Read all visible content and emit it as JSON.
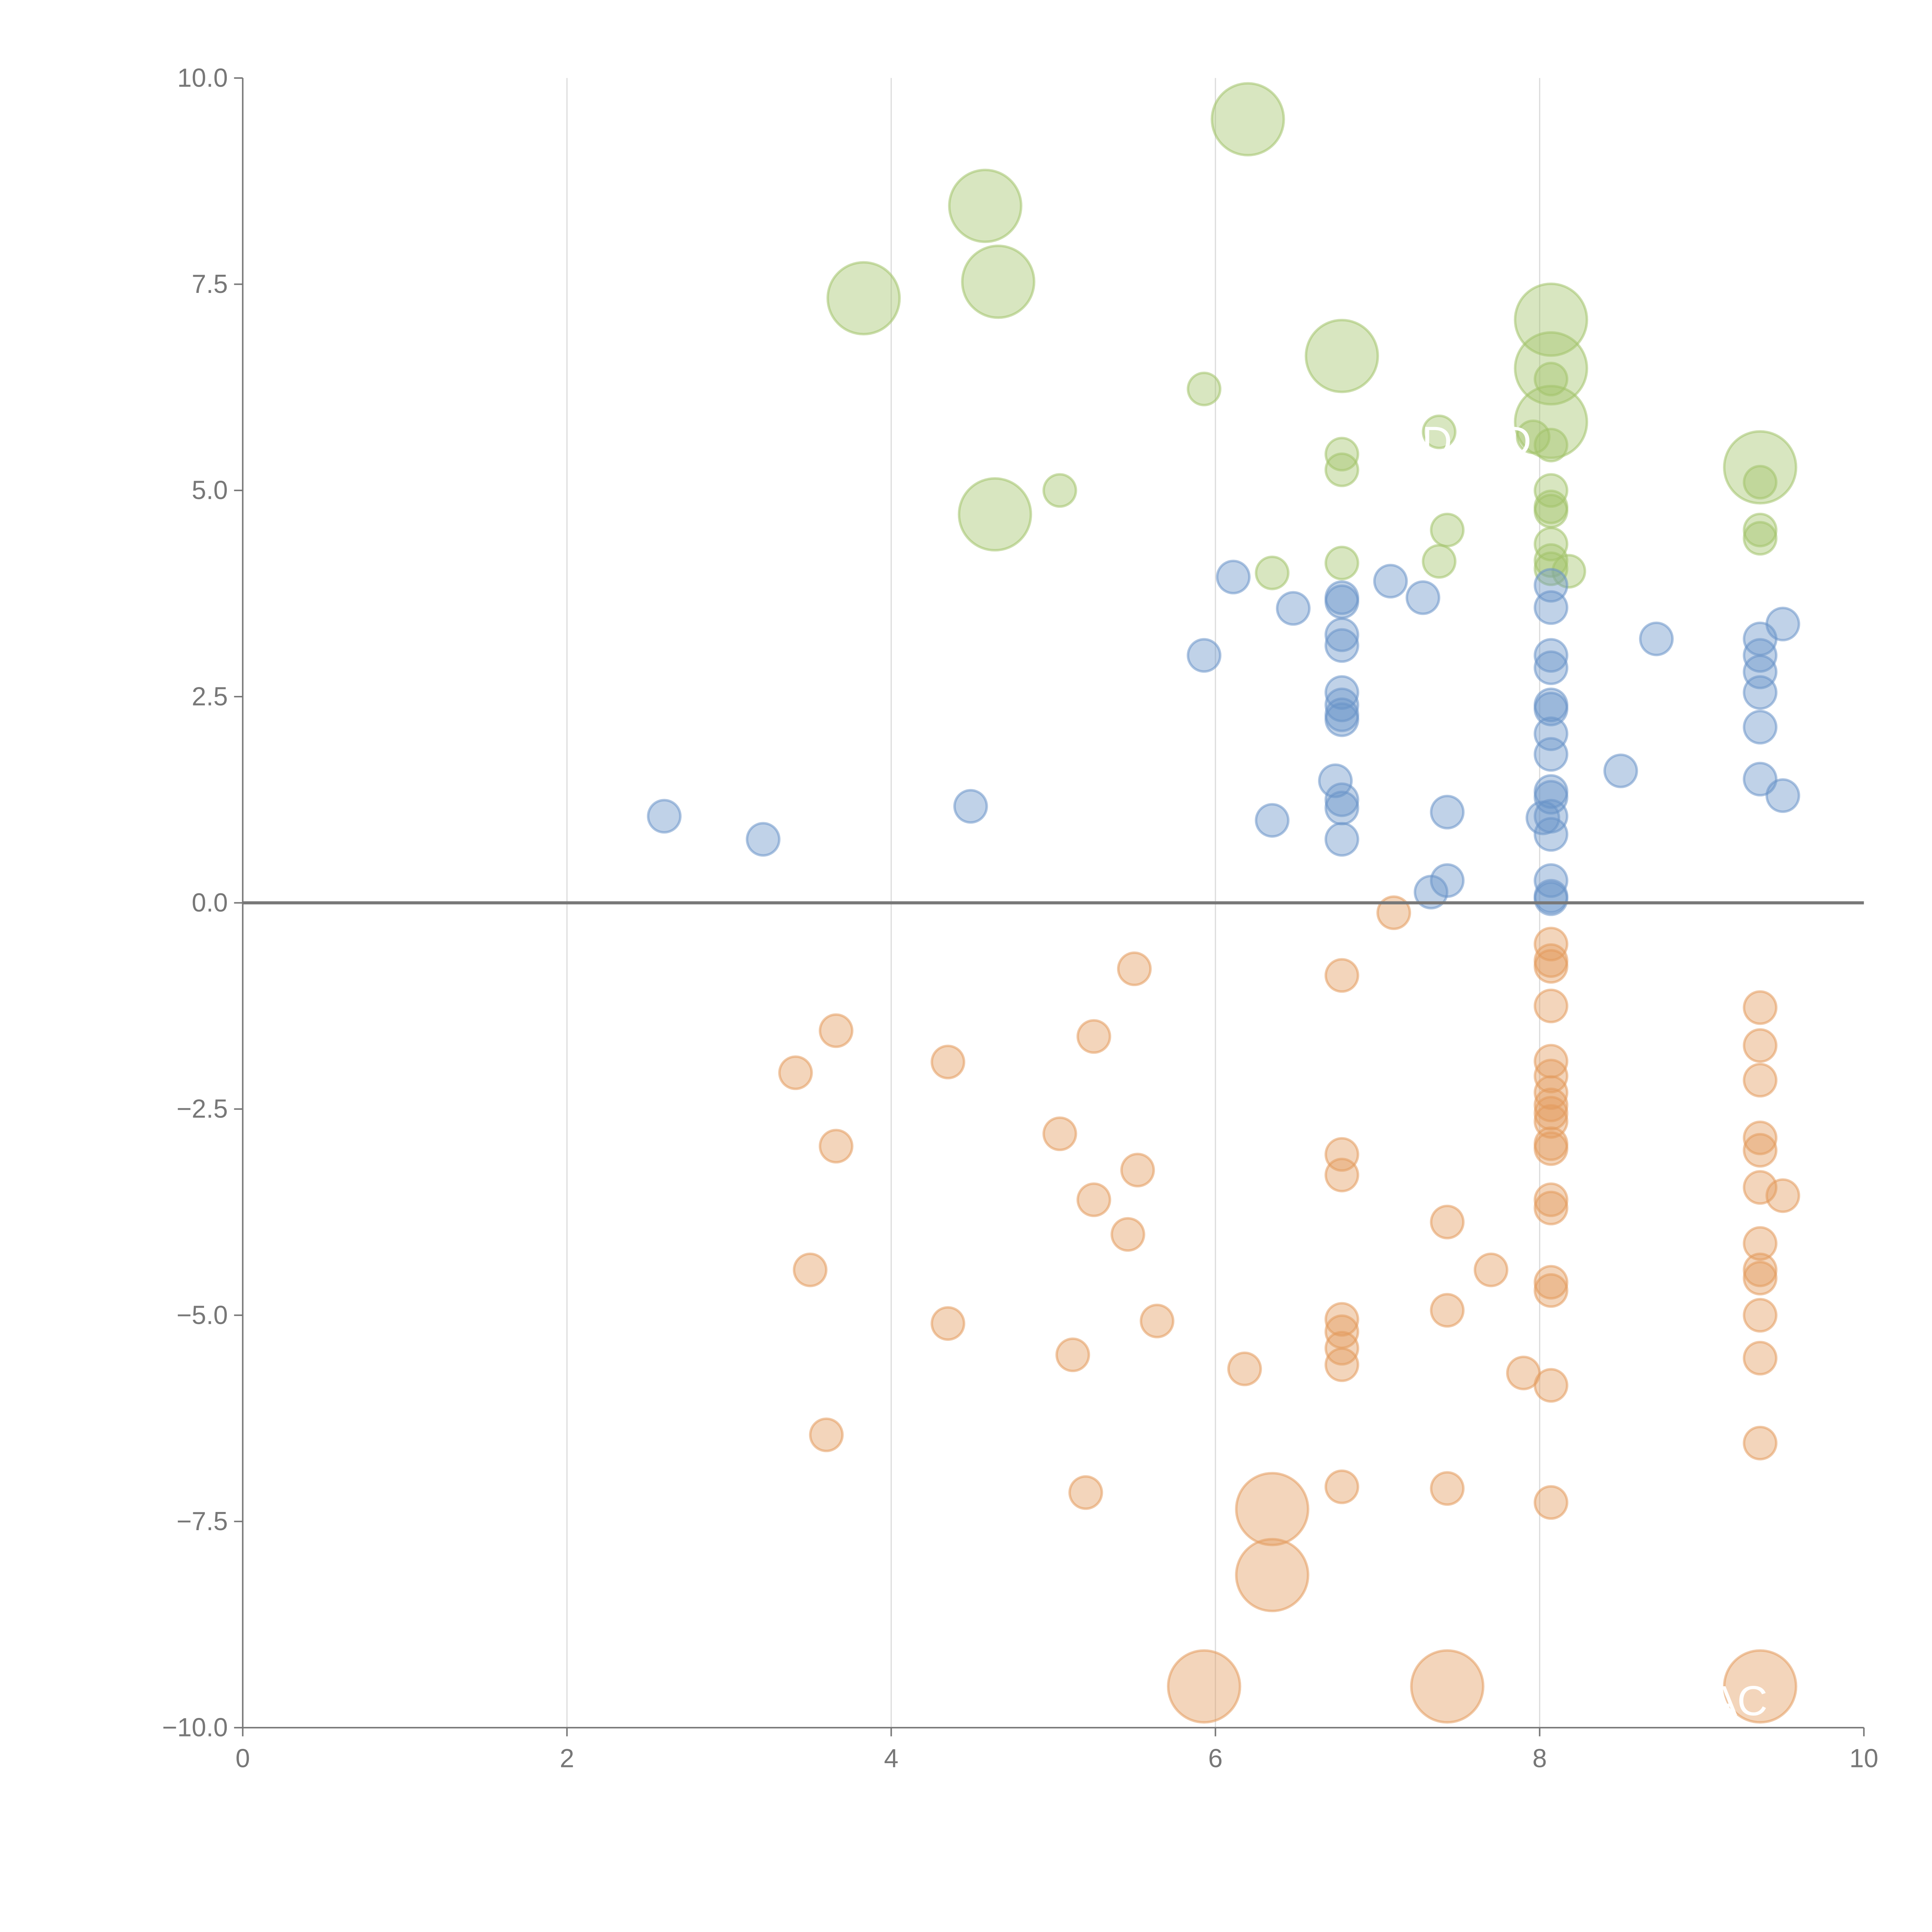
{
  "chart_data": {
    "type": "scatter",
    "title": "",
    "xlabel": "",
    "ylabel": "",
    "xlim": [
      0,
      10
    ],
    "ylim": [
      -10,
      10
    ],
    "grid": "vertical",
    "x_ticks": [
      "0",
      "2",
      "4",
      "6",
      "8",
      "10"
    ],
    "y_ticks": [
      "10.0",
      "7.5",
      "5.0",
      "2.5",
      "0.0",
      "−2.5",
      "−5.0",
      "−7.5",
      "−10.0"
    ],
    "annotations": [
      "D",
      "D",
      "AC"
    ],
    "series": [
      {
        "name": "green",
        "color": "#a2c36a",
        "points": [
          [
            3.83,
            7.33,
            3
          ],
          [
            4.58,
            8.45,
            3
          ],
          [
            4.66,
            7.53,
            3
          ],
          [
            6.2,
            9.5,
            3
          ],
          [
            6.78,
            6.63,
            3
          ],
          [
            8.07,
            7.07,
            3
          ],
          [
            8.07,
            6.48,
            3
          ],
          [
            8.07,
            5.83,
            3
          ],
          [
            9.36,
            5.28,
            3
          ],
          [
            4.64,
            4.71,
            3
          ],
          [
            5.93,
            6.23,
            1
          ],
          [
            5.04,
            5.0,
            1
          ],
          [
            6.78,
            5.44,
            1
          ],
          [
            6.78,
            5.25,
            1
          ],
          [
            7.38,
            5.71,
            1
          ],
          [
            7.96,
            5.65,
            1
          ],
          [
            8.07,
            6.35,
            1
          ],
          [
            8.07,
            5.55,
            1
          ],
          [
            8.07,
            5.0,
            1
          ],
          [
            8.07,
            4.8,
            1
          ],
          [
            8.07,
            4.75,
            1
          ],
          [
            8.07,
            4.35,
            1
          ],
          [
            8.07,
            4.15,
            1
          ],
          [
            8.07,
            4.05,
            1
          ],
          [
            8.18,
            4.02,
            1
          ],
          [
            7.43,
            4.52,
            1
          ],
          [
            7.38,
            4.14,
            1
          ],
          [
            6.78,
            4.12,
            1
          ],
          [
            6.35,
            4.0,
            1
          ],
          [
            9.36,
            5.1,
            1
          ],
          [
            9.36,
            4.52,
            1
          ],
          [
            9.36,
            4.42,
            1
          ]
        ]
      },
      {
        "name": "blue",
        "color": "#6a93c8",
        "points": [
          [
            2.6,
            1.05,
            1
          ],
          [
            3.21,
            0.77,
            1
          ],
          [
            4.49,
            1.17,
            1
          ],
          [
            5.93,
            3.0,
            1
          ],
          [
            6.11,
            3.95,
            1
          ],
          [
            6.48,
            3.57,
            1
          ],
          [
            6.35,
            1.0,
            1
          ],
          [
            6.78,
            3.7,
            1
          ],
          [
            6.78,
            3.65,
            1
          ],
          [
            6.78,
            3.25,
            1
          ],
          [
            6.78,
            3.12,
            1
          ],
          [
            6.78,
            2.55,
            1
          ],
          [
            6.78,
            2.4,
            1
          ],
          [
            6.78,
            2.22,
            1
          ],
          [
            6.78,
            2.28,
            1
          ],
          [
            6.74,
            1.48,
            1
          ],
          [
            6.78,
            1.25,
            1
          ],
          [
            6.78,
            1.15,
            1
          ],
          [
            6.78,
            0.77,
            1
          ],
          [
            7.08,
            3.9,
            1
          ],
          [
            7.28,
            3.7,
            1
          ],
          [
            7.43,
            1.1,
            1
          ],
          [
            7.43,
            0.27,
            1
          ],
          [
            7.33,
            0.13,
            1
          ],
          [
            8.07,
            3.85,
            1
          ],
          [
            8.07,
            3.58,
            1
          ],
          [
            8.07,
            3.0,
            1
          ],
          [
            8.07,
            2.85,
            1
          ],
          [
            8.07,
            2.4,
            1
          ],
          [
            8.07,
            2.35,
            1
          ],
          [
            8.07,
            2.05,
            1
          ],
          [
            8.07,
            1.8,
            1
          ],
          [
            8.07,
            1.35,
            1
          ],
          [
            8.07,
            1.28,
            1
          ],
          [
            8.02,
            1.03,
            1
          ],
          [
            8.07,
            1.05,
            1
          ],
          [
            8.07,
            0.83,
            1
          ],
          [
            8.07,
            0.27,
            1
          ],
          [
            8.07,
            0.08,
            1
          ],
          [
            8.07,
            0.05,
            1
          ],
          [
            8.5,
            1.6,
            1
          ],
          [
            8.72,
            3.2,
            1
          ],
          [
            9.36,
            3.2,
            1
          ],
          [
            9.36,
            3.0,
            1
          ],
          [
            9.36,
            2.8,
            1
          ],
          [
            9.36,
            2.55,
            1
          ],
          [
            9.36,
            2.13,
            1
          ],
          [
            9.36,
            1.5,
            1
          ],
          [
            9.5,
            3.38,
            1
          ],
          [
            9.5,
            1.3,
            1
          ]
        ]
      },
      {
        "name": "orange",
        "color": "#e39a5c",
        "points": [
          [
            7.1,
            -0.12,
            1
          ],
          [
            5.5,
            -0.8,
            1
          ],
          [
            6.78,
            -0.88,
            1
          ],
          [
            3.66,
            -1.55,
            1
          ],
          [
            3.41,
            -2.06,
            1
          ],
          [
            4.35,
            -1.93,
            1
          ],
          [
            5.25,
            -1.62,
            1
          ],
          [
            3.66,
            -2.95,
            1
          ],
          [
            5.04,
            -2.8,
            1
          ],
          [
            5.52,
            -3.24,
            1
          ],
          [
            5.25,
            -3.6,
            1
          ],
          [
            5.46,
            -4.02,
            1
          ],
          [
            3.5,
            -4.45,
            1
          ],
          [
            4.35,
            -5.1,
            1
          ],
          [
            5.64,
            -5.07,
            1
          ],
          [
            5.12,
            -5.48,
            1
          ],
          [
            3.6,
            -6.45,
            1
          ],
          [
            5.2,
            -7.15,
            1
          ],
          [
            6.18,
            -5.65,
            1
          ],
          [
            6.78,
            -3.05,
            1
          ],
          [
            6.78,
            -3.3,
            1
          ],
          [
            6.78,
            -5.05,
            1
          ],
          [
            6.78,
            -5.2,
            1
          ],
          [
            6.78,
            -5.4,
            1
          ],
          [
            6.78,
            -5.6,
            1
          ],
          [
            6.78,
            -7.08,
            1
          ],
          [
            7.43,
            -3.87,
            1
          ],
          [
            7.43,
            -4.94,
            1
          ],
          [
            7.43,
            -7.1,
            1
          ],
          [
            7.7,
            -4.45,
            1
          ],
          [
            7.9,
            -5.7,
            1
          ],
          [
            8.07,
            -0.5,
            1
          ],
          [
            8.07,
            -0.7,
            1
          ],
          [
            8.07,
            -0.77,
            1
          ],
          [
            8.07,
            -1.25,
            1
          ],
          [
            8.07,
            -1.92,
            1
          ],
          [
            8.07,
            -2.1,
            1
          ],
          [
            8.07,
            -2.3,
            1
          ],
          [
            8.07,
            -2.45,
            1
          ],
          [
            8.07,
            -2.55,
            1
          ],
          [
            8.07,
            -2.65,
            1
          ],
          [
            8.07,
            -2.92,
            1
          ],
          [
            8.07,
            -2.98,
            1
          ],
          [
            8.07,
            -3.6,
            1
          ],
          [
            8.07,
            -3.7,
            1
          ],
          [
            8.07,
            -4.6,
            1
          ],
          [
            8.07,
            -4.7,
            1
          ],
          [
            8.07,
            -5.85,
            1
          ],
          [
            8.07,
            -7.27,
            1
          ],
          [
            9.36,
            -1.27,
            1
          ],
          [
            9.36,
            -1.73,
            1
          ],
          [
            9.36,
            -2.15,
            1
          ],
          [
            9.36,
            -2.85,
            1
          ],
          [
            9.36,
            -3.0,
            1
          ],
          [
            9.36,
            -3.45,
            1
          ],
          [
            9.5,
            -3.55,
            1
          ],
          [
            9.36,
            -4.13,
            1
          ],
          [
            9.36,
            -4.45,
            1
          ],
          [
            9.36,
            -4.55,
            1
          ],
          [
            9.36,
            -5.0,
            1
          ],
          [
            9.36,
            -5.52,
            1
          ],
          [
            9.36,
            -6.55,
            1
          ],
          [
            6.35,
            -7.35,
            3
          ],
          [
            6.35,
            -8.15,
            3
          ],
          [
            5.93,
            -9.5,
            3
          ],
          [
            7.43,
            -9.5,
            3
          ],
          [
            9.36,
            -9.5,
            3
          ]
        ]
      }
    ]
  }
}
